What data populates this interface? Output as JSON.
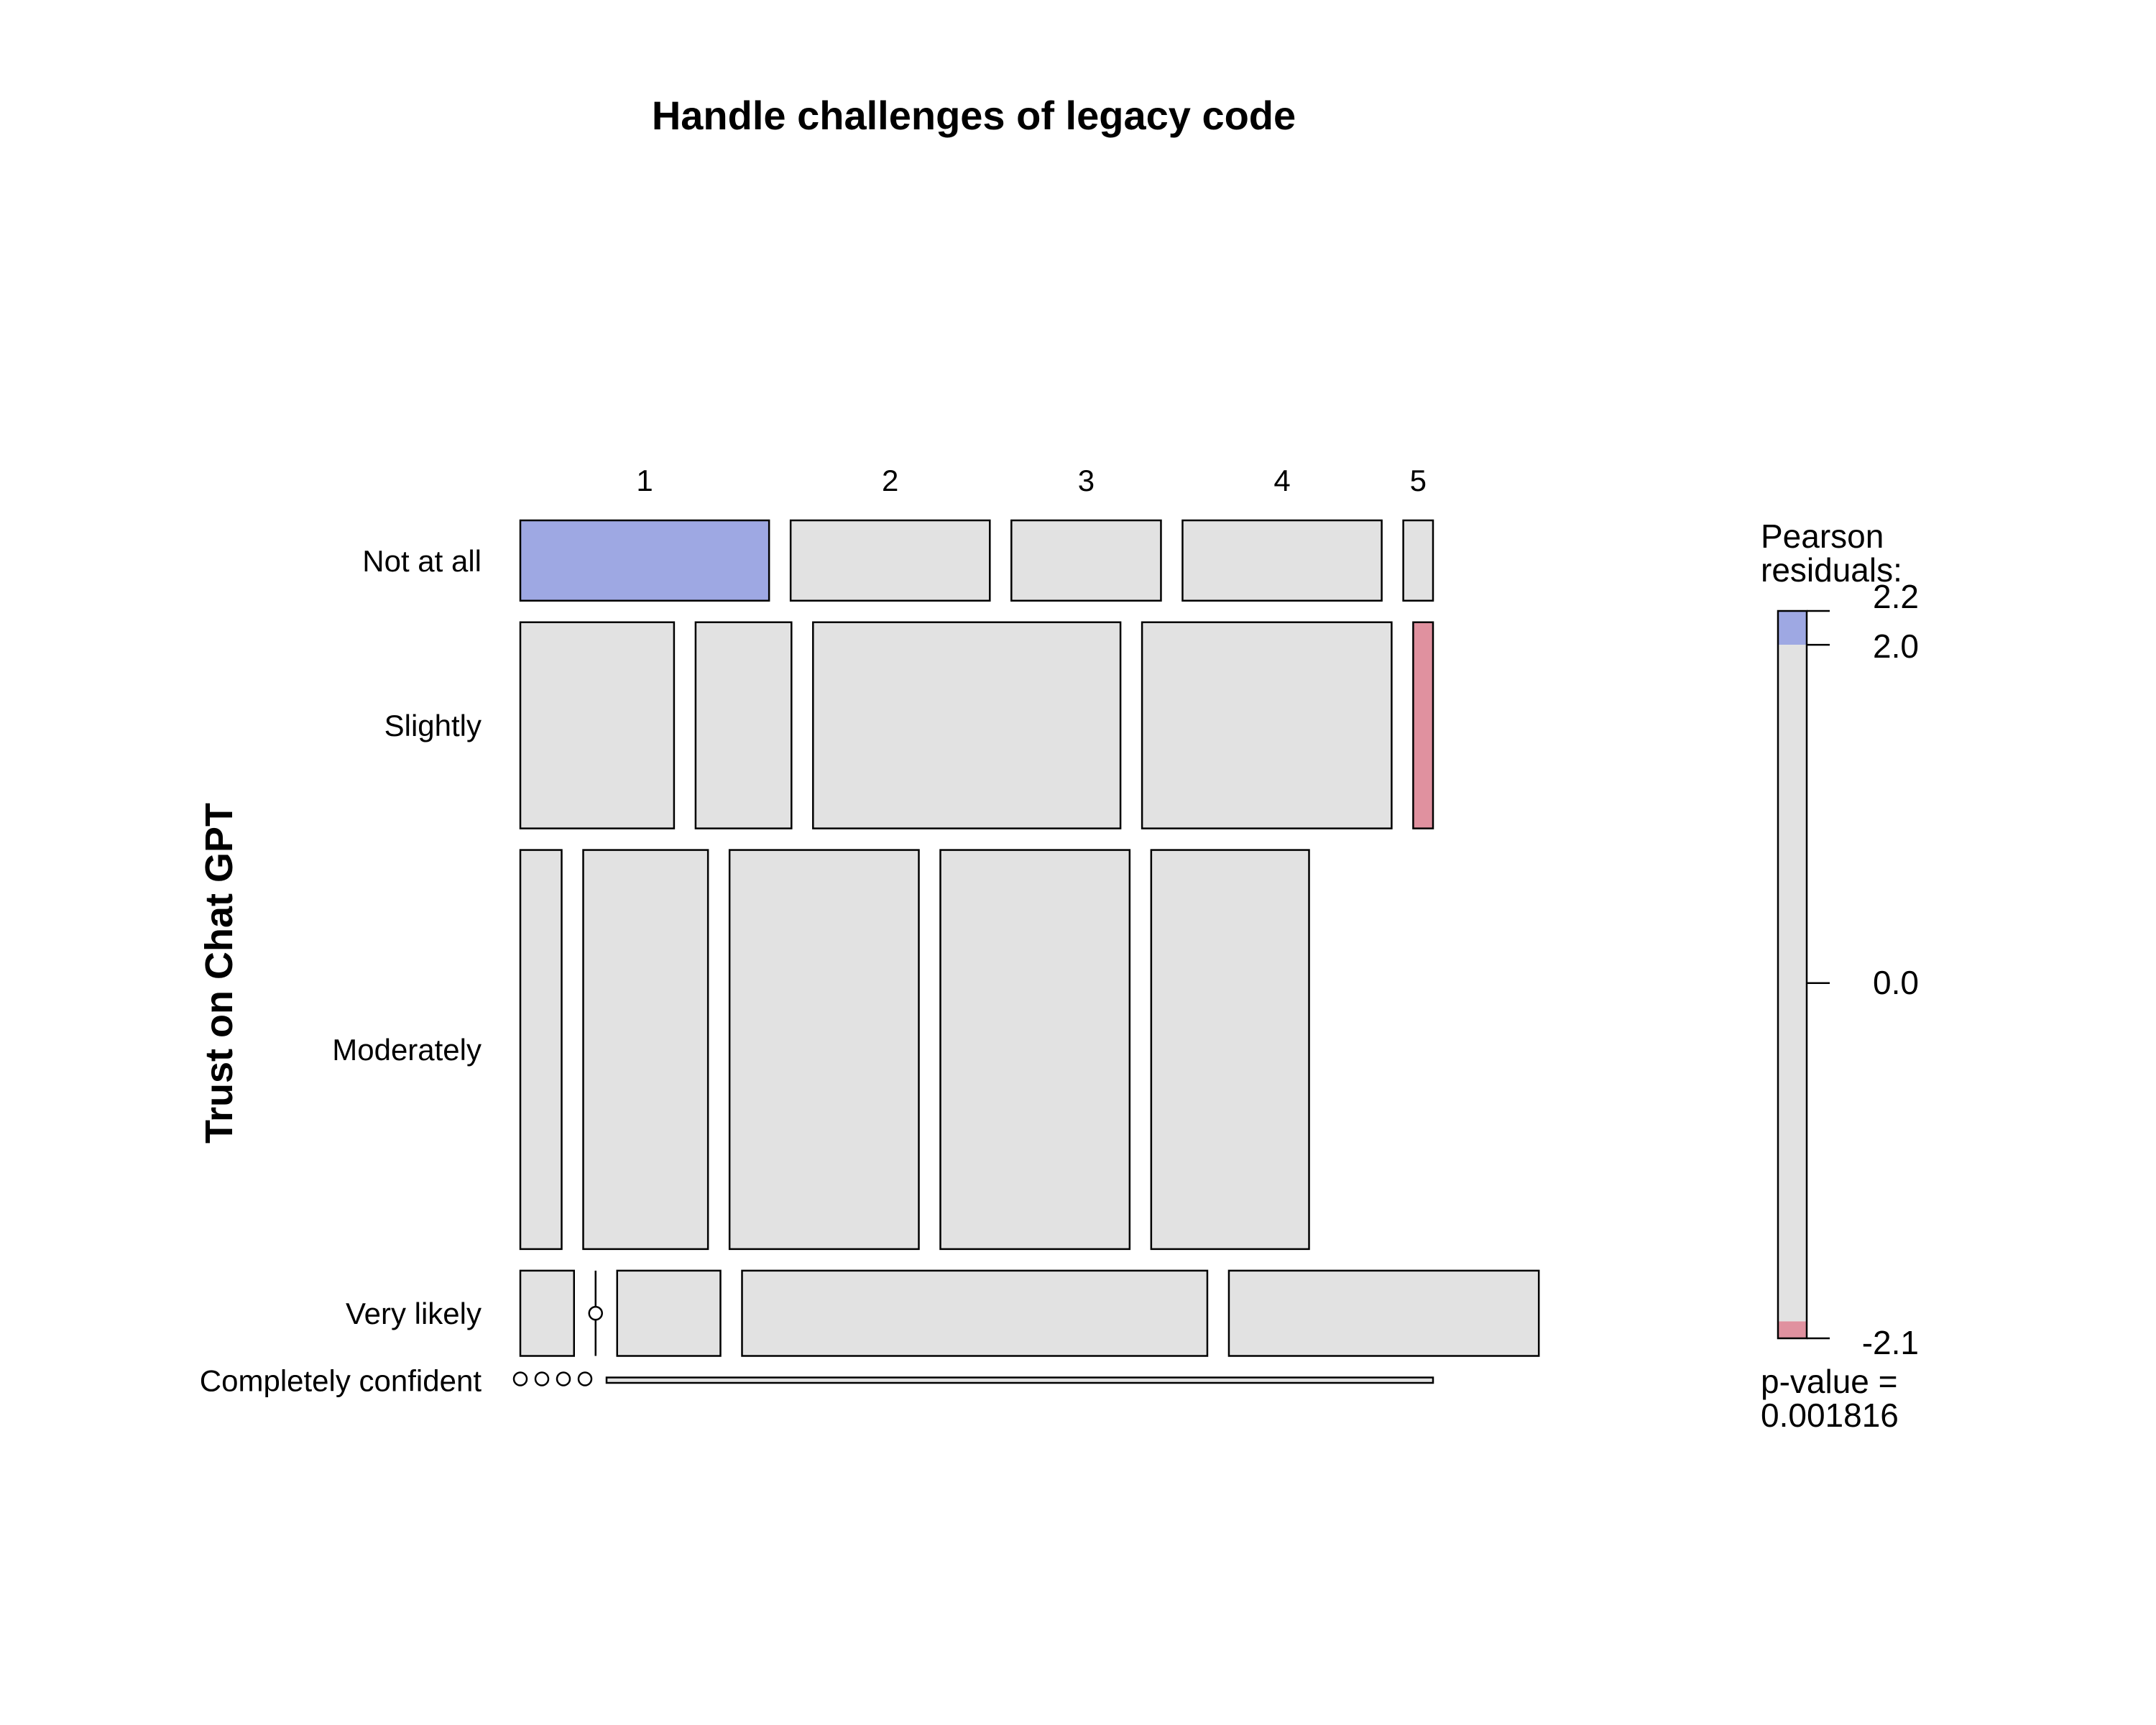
{
  "chart_data": {
    "type": "mosaic",
    "title": "Handle challenges of legacy code",
    "ylabel": "Trust on Chat GPT",
    "columns": [
      "1",
      "2",
      "3",
      "4",
      "5"
    ],
    "rows": [
      "Not at all",
      "Slightly",
      "Moderately",
      "Very likely",
      "Completely confident"
    ],
    "row_proportions": [
      0.097,
      0.249,
      0.482,
      0.103,
      0.0065
    ],
    "cell_proportions": [
      [
        0.301,
        0.241,
        0.181,
        0.241,
        0.036
      ],
      [
        0.186,
        0.116,
        0.372,
        0.302,
        0.024
      ],
      [
        0.05,
        0.151,
        0.229,
        0.229,
        0.191
      ],
      [
        0.065,
        0.0,
        0.125,
        0.563,
        0.375
      ],
      [
        0.0,
        0.0,
        0.0,
        0.0,
        1.0
      ]
    ],
    "cell_fill": [
      [
        "positive",
        "neutral",
        "neutral",
        "neutral",
        "neutral"
      ],
      [
        "neutral",
        "neutral",
        "neutral",
        "neutral",
        "negative"
      ],
      [
        "neutral",
        "neutral",
        "neutral",
        "neutral",
        "neutral"
      ],
      [
        "neutral",
        "neutral",
        "neutral",
        "neutral",
        "neutral"
      ],
      [
        "neutral",
        "neutral",
        "neutral",
        "neutral",
        "neutral"
      ]
    ],
    "colors": {
      "positive": "#9EA8E3",
      "neutral": "#E2E2E2",
      "negative": "#E0919F"
    },
    "legend": {
      "title_line1": "Pearson",
      "title_line2": "residuals:",
      "ticks": [
        "2.2",
        "2.0",
        "0.0",
        "-2.1"
      ],
      "tick_values": [
        2.2,
        2.0,
        0.0,
        -2.1
      ],
      "range": [
        -2.1,
        2.2
      ],
      "pvalue_line1": "p-value =",
      "pvalue_line2": "0.001816"
    }
  }
}
